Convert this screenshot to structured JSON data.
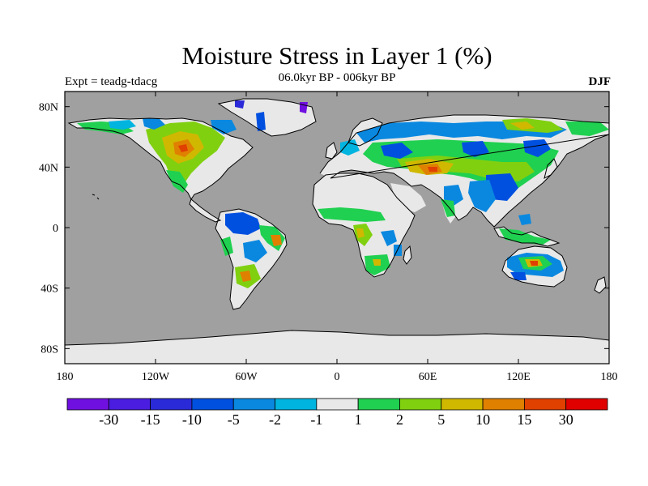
{
  "title": "Moisture Stress in Layer 1 (%)",
  "subtitle": "06.0kyr BP - 006kyr BP",
  "left_label": "Expt = teadg-tdacg",
  "right_label": "DJF",
  "map": {
    "lon_range": [
      -180,
      180
    ],
    "lat_range": [
      -90,
      90
    ],
    "lon_ticks": [
      {
        "value": -180,
        "label": "180"
      },
      {
        "value": -120,
        "label": "120W"
      },
      {
        "value": -60,
        "label": "60W"
      },
      {
        "value": 0,
        "label": "0"
      },
      {
        "value": 60,
        "label": "60E"
      },
      {
        "value": 120,
        "label": "120E"
      },
      {
        "value": 180,
        "label": "180"
      }
    ],
    "lat_ticks": [
      {
        "value": 80,
        "label": "80N"
      },
      {
        "value": 40,
        "label": "40N"
      },
      {
        "value": 0,
        "label": "0"
      },
      {
        "value": -40,
        "label": "40S"
      },
      {
        "value": -80,
        "label": "80S"
      }
    ],
    "ocean_color": "#a0a0a0",
    "neutral_color": "#e8e8e8"
  },
  "colorbar": {
    "colors": [
      "#7010e0",
      "#4a1de0",
      "#2a2ad8",
      "#0050e0",
      "#0a88e0",
      "#00b4e0",
      "#e8e8e8",
      "#20d050",
      "#80d010",
      "#d0b800",
      "#e08000",
      "#e04000",
      "#e00000"
    ],
    "labels": [
      "-30",
      "-15",
      "-10",
      "-5",
      "-2",
      "-1",
      "1",
      "2",
      "5",
      "10",
      "15",
      "30"
    ]
  }
}
